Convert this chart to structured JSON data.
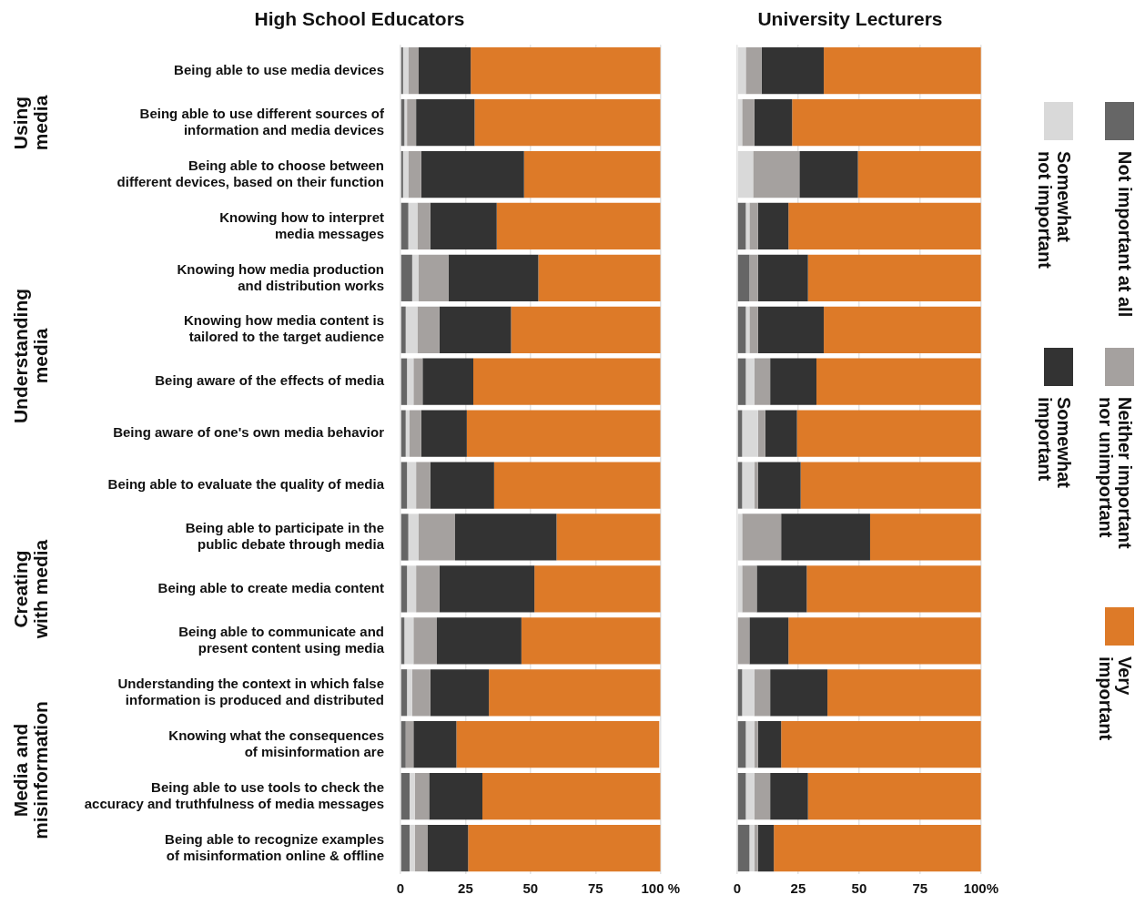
{
  "chart_data": [
    {
      "type": "bar",
      "title": "High School Educators",
      "orientation": "horizontal",
      "stacked": true,
      "grid": "x",
      "categories": [
        "Being able to use media devices",
        "Being able to use different sources of\ninformation and media devices",
        "Being able to choose between\ndifferent devices, based on their function",
        "Knowing how to interpret\nmedia messages",
        "Knowing how media production\nand distribution works",
        "Knowing how media content is\ntailored to the target audience",
        "Being aware of the effects of media",
        "Being aware of one's own media behavior",
        "Being able to evaluate the quality of media",
        "Being able to participate in the\npublic debate through media",
        "Being able to create media content",
        "Being able to communicate and\npresent content using media",
        "Understanding the context in which false\ninformation is produced and distributed",
        "Knowing what the consequences\nof misinformation are",
        "Being able to use tools to check the\naccuracy and truthfulness of media messages",
        "Being able to recognize examples\nof misinformation online & offline"
      ],
      "series": [
        {
          "color": "#666666",
          "values": [
            1,
            1.5,
            1,
            3,
            4.5,
            2,
            2.5,
            2,
            2.5,
            3,
            2.5,
            1.5,
            2.5,
            2,
            3.5,
            3.5
          ]
        },
        {
          "color": "#d9d9d9",
          "values": [
            2,
            1,
            2,
            3.5,
            2.5,
            4.5,
            2.5,
            1.5,
            3.5,
            4,
            3.5,
            3.5,
            2,
            null,
            2,
            2
          ]
        },
        {
          "color": "#a5a19f",
          "values": [
            4,
            3.5,
            5,
            5,
            11.5,
            8.5,
            3.5,
            4.5,
            5.5,
            14,
            9,
            9,
            7,
            3,
            5.5,
            5
          ]
        },
        {
          "color": "#333333",
          "values": [
            20,
            22.5,
            39.5,
            25.5,
            34.5,
            27.5,
            19.5,
            17.5,
            24.5,
            39,
            36.5,
            32.5,
            22.5,
            16.5,
            20.5,
            15.5
          ]
        },
        {
          "color": "#dd7a28",
          "values": [
            73,
            71.5,
            52.5,
            63,
            47,
            57.5,
            72,
            74.5,
            64,
            40,
            48.5,
            53.5,
            66,
            78,
            68.5,
            74
          ]
        }
      ],
      "xlim": [
        0,
        100
      ],
      "xticks": [
        0,
        25,
        50,
        75,
        {
          "value": 100,
          "label": "100 %"
        }
      ],
      "annotations": [
        "Using\nmedia",
        "Understanding\nmedia",
        "Creating\nwith media",
        "Media and\nmisinformation"
      ]
    },
    {
      "type": "bar",
      "title": "University Lecturers",
      "orientation": "horizontal",
      "stacked": true,
      "grid": "x",
      "tick_labels": "x",
      "legend": "right",
      "categories": [
        null,
        null,
        null,
        null,
        null,
        null,
        null,
        null,
        null,
        null,
        null,
        null,
        null,
        null,
        null,
        null
      ],
      "series": [
        {
          "name": "Not important at all",
          "color": "#666666",
          "values": [
            0,
            0,
            0,
            3.5,
            5,
            3.5,
            3.5,
            2,
            2,
            0,
            0,
            0,
            2,
            3.5,
            3.5,
            5
          ]
        },
        {
          "name": "Somewhat\nnot important",
          "color": "#d9d9d9",
          "values": [
            3.5,
            2,
            6.5,
            1.5,
            0,
            1.5,
            3.5,
            6.5,
            5,
            2,
            2,
            0,
            5,
            3.5,
            3.5,
            2
          ]
        },
        {
          "name": "Neither important\nnor unimportant",
          "color": "#a5a19f",
          "values": [
            6.5,
            5,
            19,
            3.5,
            3.5,
            3.5,
            6.5,
            3,
            1.5,
            16,
            6,
            5,
            6.5,
            1.5,
            6.5,
            1.5
          ]
        },
        {
          "name": "Somewhat\nimportant",
          "color": "#333333",
          "values": [
            25.5,
            15.5,
            24,
            12.5,
            20.5,
            27,
            19,
            13,
            17.5,
            36.5,
            20.5,
            16,
            23.5,
            9.5,
            15.5,
            6.5
          ]
        },
        {
          "name": "Very\nimportant",
          "color": "#dd7a28",
          "values": [
            64.5,
            77.5,
            50.5,
            79,
            71,
            64.5,
            67.5,
            75.5,
            74,
            45.5,
            71.5,
            79,
            63,
            82,
            71,
            85
          ]
        }
      ],
      "xlim": [
        0,
        100
      ],
      "xticks": [
        0,
        25,
        50,
        75,
        {
          "value": 100,
          "label": "100%"
        }
      ]
    }
  ]
}
